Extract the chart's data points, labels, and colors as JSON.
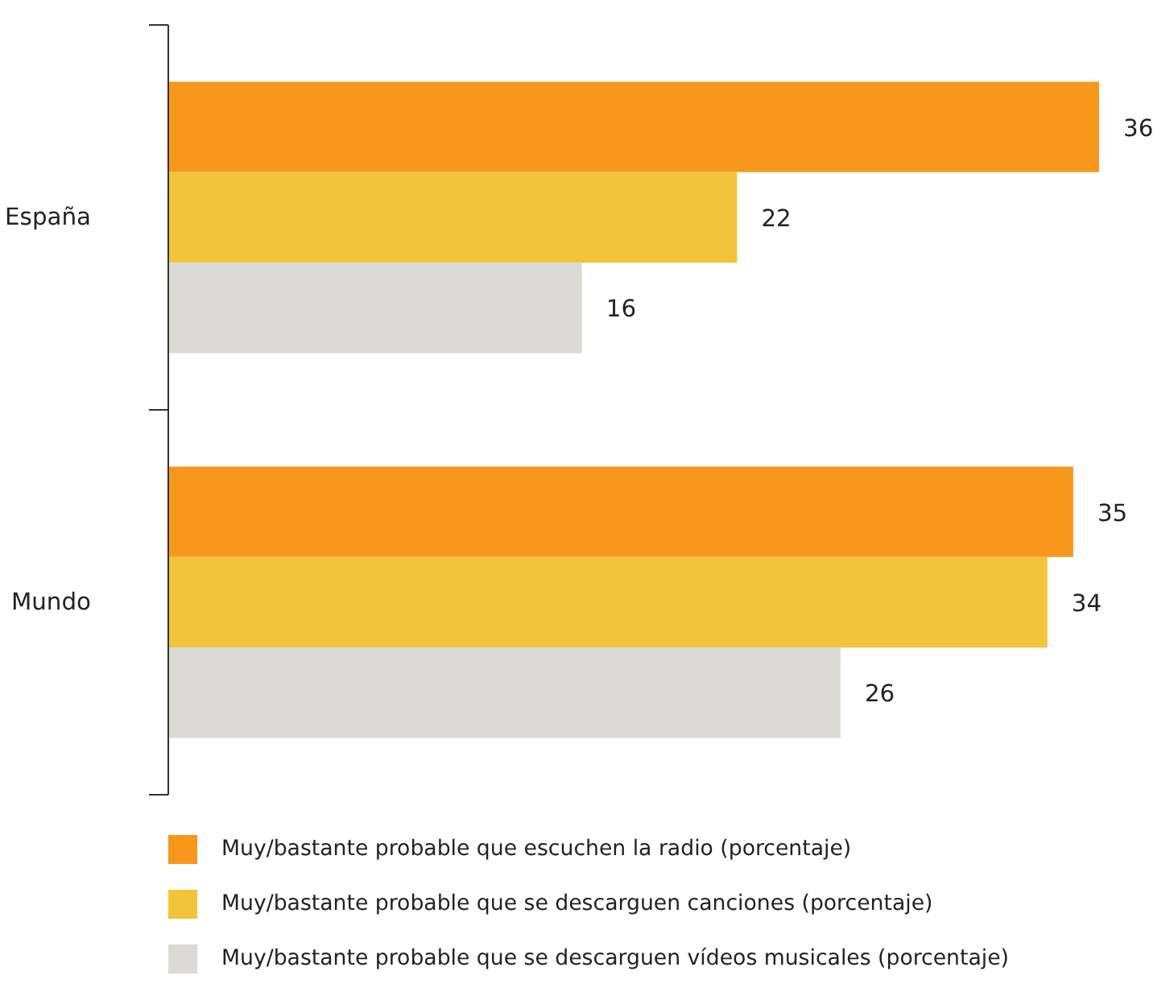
{
  "chart_data": {
    "type": "bar",
    "orientation": "horizontal",
    "categories": [
      "España",
      "Mundo"
    ],
    "series": [
      {
        "name": "Muy/bastante probable que escuchen la radio (porcentaje)",
        "color": "#f7981d",
        "values": [
          36,
          35
        ]
      },
      {
        "name": "Muy/bastante probable que se descarguen canciones (porcentaje)",
        "color": "#f2c43b",
        "values": [
          22,
          34
        ]
      },
      {
        "name": "Muy/bastante probable que se descarguen vídeos musicales (porcentaje)",
        "color": "#dcdad7",
        "values": [
          16,
          26
        ]
      }
    ],
    "data_labels": true,
    "legend": "bottom",
    "grid": false
  }
}
